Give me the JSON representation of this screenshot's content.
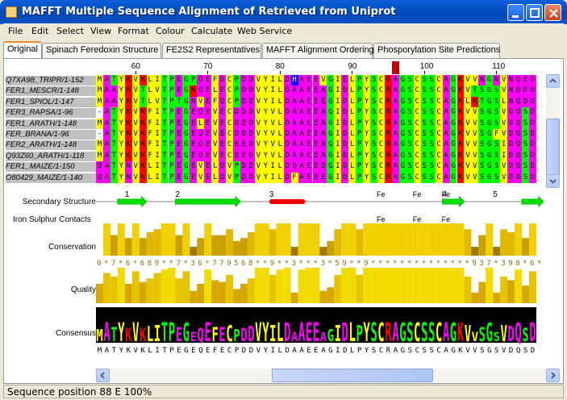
{
  "window": {
    "title": "MAFFT Multiple Sequence Alignment of Retrieved from Uniprot",
    "accent": "#0a55c8"
  },
  "menu": [
    "File",
    "Edit",
    "Select",
    "View",
    "Format",
    "Colour",
    "Calculate",
    "Web Service"
  ],
  "tabs": [
    "Original",
    "Spinach Feredoxin Structure",
    "FE2S2 Representatives",
    "MAFFT Alignment Ordering",
    "Phosporylation Site Predictions"
  ],
  "active_tab": 0,
  "ruler": {
    "start": 55,
    "labels": [
      "60",
      "70",
      "80",
      "90",
      "100",
      "110"
    ],
    "highlight_position": 96
  },
  "sequences": [
    {
      "name": "Q7XA98_TRIPR/1-152",
      "seq": "MATYKVKLITPEGPQEFDCPDDVYILDHAEEVGIELPYSCRAGSCSSCAGKVVNGNVNQED"
    },
    {
      "name": "FER1_MESCR/1-148",
      "seq": "MAAYKVTLVTPEGKQELECPDDVYILDAAEEAGIDLPYSCRAGSCSSCAGKVTSGSVNQDD"
    },
    {
      "name": "FER1_SPIOL/1-147",
      "seq": "MAAYKVTLVTPTGNVEFQCPDDVYILDAAEEEGIDLPYSCRAGSCSSCAGKLKTGSLNQDD"
    },
    {
      "name": "FER3_RAPSA/1-96",
      "seq": "-ATYKVKFITPEGEQEVECDDDVYVLDAAEEAGIDLPYSCRAGSCSSCAGKVVSGSVDQSD"
    },
    {
      "name": "FER1_ARATH/1-148",
      "seq": "MATYKVKFITPEGELEVECDDDVYVLDAAEEAGIDLPYSCRAGSCSSCAGKVVSGSVDQSD"
    },
    {
      "name": "FER_BRANA/1-96",
      "seq": "-ATYKVKFITPEGEQEVECDDDVYVLDAAEEAGIDLPYSCRAGSCSSCAGKVVSGFVDQSD"
    },
    {
      "name": "FER2_ARATH/1-148",
      "seq": "MATYKVKFITPEGEQEVECEEDVYVLDAAEEAGIDLPYSCRAGSCSSCAGKVVSGSIDQSD"
    },
    {
      "name": "Q93Z60_ARATH/1-118",
      "seq": "MATYKVKFITPEGEQEVECEEDVYVLDAAEEAGIDLPYSCRAGSCSSCAGKVVSGSIDQSD"
    },
    {
      "name": "FER1_MAIZE/1-150",
      "seq": "QATYNVKLITPEGEVELQVPDDVYILDQAEEDGIDLPYSCRAGSCSSCAGKVVSGSVDQSD"
    },
    {
      "name": "O80429_MAIZE/1-140",
      "seq": "QATYNVKLITPEGEVELQVPDDVYILDFAEEEGIDLPYSCRAGSCSSCAGKVVSGSVDQSD"
    }
  ],
  "selected_rows": [
    0,
    1,
    2,
    3,
    4,
    5,
    6,
    7,
    8,
    9
  ],
  "annotations": {
    "secondary_structure": {
      "label": "Secondary Structure",
      "markers": [
        "1",
        "2",
        "3",
        "4",
        "5"
      ],
      "fe": [
        "Fe",
        "Fe",
        "Fe"
      ]
    },
    "iron_sulphur": {
      "label": "Iron Sulphur Contacts",
      "fe": [
        "Fe",
        "Fe",
        "Fe"
      ]
    },
    "conservation": {
      "label": "Conservation",
      "scores": "0*7*6*689**7*36*779568**9**3***3*59**9**************937*398*6*",
      "levels": [
        0,
        11,
        7,
        11,
        6,
        11,
        6,
        8,
        9,
        11,
        11,
        7,
        11,
        3,
        6,
        11,
        7,
        7,
        9,
        5,
        6,
        8,
        11,
        11,
        9,
        11,
        11,
        3,
        11,
        11,
        11,
        3,
        5,
        9,
        11,
        11,
        9,
        11,
        11,
        11,
        11,
        11,
        11,
        11,
        11,
        11,
        11,
        11,
        11,
        11,
        11,
        9,
        3,
        7,
        11,
        3,
        9,
        8,
        11,
        6,
        11
      ]
    },
    "quality": {
      "label": "Quality",
      "levels": [
        0.55,
        0.85,
        0.75,
        1.0,
        0.55,
        0.9,
        0.6,
        0.7,
        0.85,
        0.95,
        1.0,
        0.7,
        0.9,
        0.35,
        0.55,
        0.95,
        0.65,
        0.6,
        0.8,
        0.4,
        0.55,
        0.7,
        1.0,
        1.0,
        0.8,
        0.95,
        1.0,
        0.3,
        0.95,
        1.0,
        1.0,
        0.35,
        0.45,
        0.8,
        1.0,
        1.0,
        0.8,
        1.0,
        1.0,
        1.0,
        1.0,
        1.0,
        1.0,
        1.0,
        1.0,
        1.0,
        1.0,
        1.0,
        1.0,
        1.0,
        1.0,
        0.75,
        0.3,
        0.6,
        1.0,
        0.3,
        0.75,
        0.65,
        0.95,
        0.5,
        0.9
      ]
    },
    "consensus": {
      "label": "Consensus",
      "sequence": "MATYKVKLITPEGEQEFECPDDVYILDAAEEAGIDLPYSCRAGSCSSCAGKVVSGSVDQSD"
    }
  },
  "status": "Sequence position 88  E 100%",
  "colors": {
    "A": "#ff00ff",
    "R": "#ff0000",
    "N": "#ff00ff",
    "D": "#ff00ff",
    "C": "#ffff00",
    "Q": "#ff00ff",
    "E": "#ff00ff",
    "G": "#00ff00",
    "H": "#0000ff",
    "I": "#ffff00",
    "L": "#ffff00",
    "K": "#ff0000",
    "M": "#ffff00",
    "F": "#ffff00",
    "P": "#00ff00",
    "S": "#00ff00",
    "T": "#00ff00",
    "W": "#ffff00",
    "Y": "#ffff00",
    "V": "#ffff00",
    "-": "#ffffff"
  }
}
